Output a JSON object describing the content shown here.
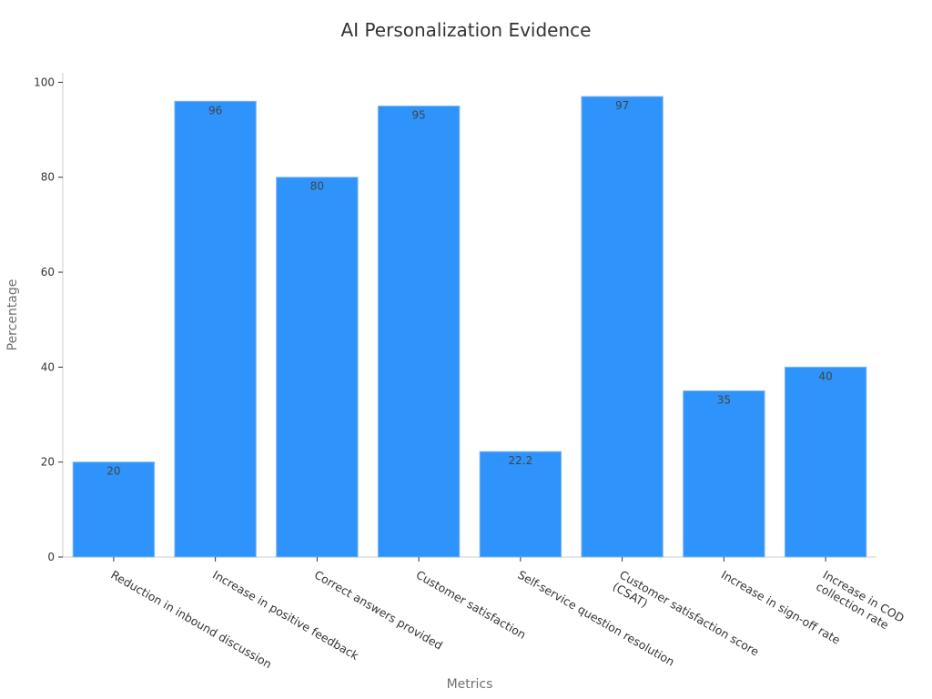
{
  "chart_data": {
    "type": "bar",
    "title": "AI Personalization Evidence",
    "xlabel": "Metrics",
    "ylabel": "Percentage",
    "categories": [
      [
        "Reduction in inbound discussion"
      ],
      [
        "Increase in positive feedback"
      ],
      [
        "Correct answers provided"
      ],
      [
        "Customer satisfaction"
      ],
      [
        "Self-service question resolution"
      ],
      [
        "Customer satisfaction score",
        "(CSAT)"
      ],
      [
        "Increase in sign-off rate"
      ],
      [
        "Increase in COD",
        "collection rate"
      ]
    ],
    "values": [
      20,
      96,
      80,
      95,
      22.2,
      97,
      35,
      40
    ],
    "data_labels": [
      "20",
      "96",
      "80",
      "95",
      "22.2",
      "97",
      "35",
      "40"
    ],
    "ylim": [
      0,
      102
    ],
    "yticks": [
      0,
      20,
      40,
      60,
      80,
      100
    ],
    "bar_color": "#2e93fa",
    "grid": false,
    "legend": "none"
  }
}
